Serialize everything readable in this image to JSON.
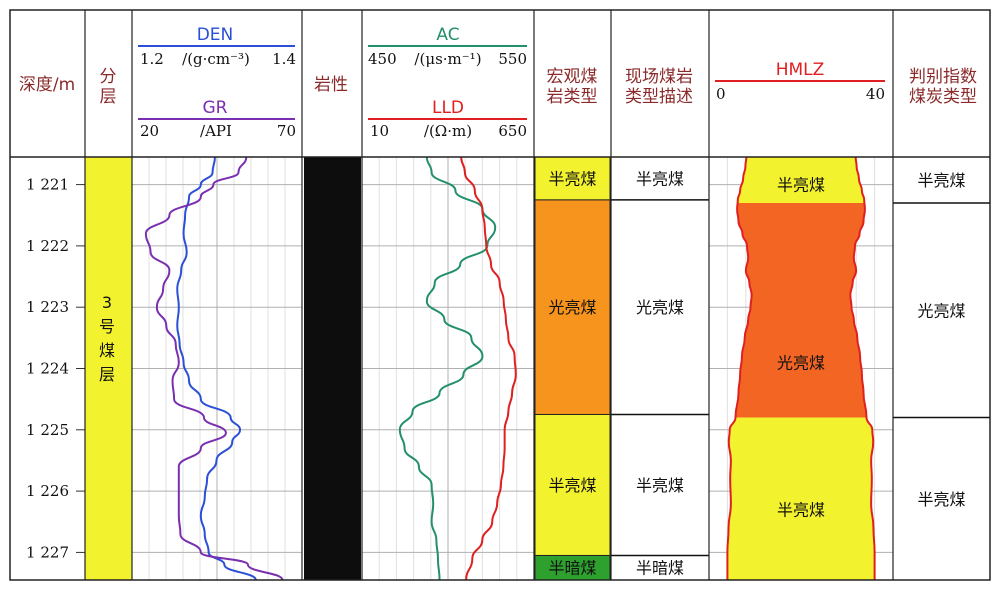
{
  "headers": {
    "depth": "深度/m",
    "layer": [
      "分",
      "层"
    ],
    "lithology": "岩性",
    "macro": [
      "宏观煤",
      "岩类型"
    ],
    "field": [
      "现场煤岩",
      "类型描述"
    ],
    "judge": [
      "判别指数",
      "煤炭类型"
    ]
  },
  "curves_header": {
    "den": {
      "name": "DEN",
      "min": "1.2",
      "unit": "/(g·cm⁻³)",
      "max": "1.4"
    },
    "gr": {
      "name": "GR",
      "min": "20",
      "unit": "/API",
      "max": "70"
    },
    "ac": {
      "name": "AC",
      "min": "450",
      "unit": "/(μs·m⁻¹)",
      "max": "550"
    },
    "lld": {
      "name": "LLD",
      "min": "10",
      "unit": "/(Ω·m)",
      "max": "650"
    },
    "hmlz": {
      "name": "HMLZ",
      "min": "0",
      "max": "40"
    }
  },
  "layer_label": [
    "3",
    "号",
    "煤",
    "层"
  ],
  "colors": {
    "den": "#2b4fd6",
    "gr": "#7a2fb0",
    "ac": "#23906a",
    "lld": "#e02020",
    "semi_bright": "#f2f22e",
    "bright": "#f7941d",
    "semi_dark": "#2ea02e",
    "hmlz_bright": "#f26522",
    "lithology": "#0d0d0d",
    "header_text": "#8b2a2a"
  },
  "chart_data": {
    "type": "line",
    "depth_ticks": [
      "1 221",
      "1 222",
      "1 223",
      "1 224",
      "1 225",
      "1 226",
      "1 227"
    ],
    "depth_range": [
      1220.55,
      1227.45
    ],
    "series": [
      {
        "name": "DEN",
        "unit": "g·cm⁻³",
        "range": [
          1.2,
          1.4
        ],
        "depth": [
          1220.55,
          1220.8,
          1221.0,
          1221.2,
          1221.5,
          1221.8,
          1222.1,
          1222.4,
          1222.7,
          1223.0,
          1223.3,
          1223.6,
          1223.9,
          1224.2,
          1224.5,
          1224.8,
          1225.0,
          1225.2,
          1225.5,
          1225.8,
          1226.1,
          1226.4,
          1226.7,
          1227.0,
          1227.2,
          1227.45
        ],
        "values": [
          1.298,
          1.295,
          1.28,
          1.265,
          1.26,
          1.258,
          1.262,
          1.255,
          1.25,
          1.252,
          1.25,
          1.253,
          1.258,
          1.265,
          1.28,
          1.318,
          1.33,
          1.32,
          1.3,
          1.288,
          1.285,
          1.28,
          1.285,
          1.29,
          1.31,
          1.35
        ]
      },
      {
        "name": "GR",
        "unit": "API",
        "range": [
          20,
          70
        ],
        "depth": [
          1220.55,
          1220.8,
          1221.0,
          1221.2,
          1221.5,
          1221.8,
          1222.1,
          1222.4,
          1222.7,
          1223.0,
          1223.3,
          1223.6,
          1223.9,
          1224.2,
          1224.5,
          1224.8,
          1225.05,
          1225.3,
          1225.6,
          1226.0,
          1226.4,
          1226.7,
          1227.0,
          1227.2,
          1227.45
        ],
        "values": [
          54.5,
          52,
          44,
          40,
          30,
          22.5,
          24,
          30,
          28,
          26,
          29,
          32,
          33,
          31,
          31.5,
          41,
          48,
          40,
          33,
          33,
          33,
          33.5,
          40,
          55,
          66
        ]
      },
      {
        "name": "AC",
        "unit": "μs·m⁻¹",
        "range": [
          450,
          550
        ],
        "depth": [
          1220.55,
          1220.8,
          1221.1,
          1221.4,
          1221.7,
          1222.0,
          1222.3,
          1222.6,
          1222.9,
          1223.2,
          1223.5,
          1223.8,
          1224.1,
          1224.4,
          1224.7,
          1225.0,
          1225.3,
          1225.6,
          1225.9,
          1226.2,
          1226.5,
          1226.8,
          1227.1,
          1227.45
        ],
        "values": [
          487,
          490,
          505,
          522,
          530,
          525,
          508,
          492,
          487,
          498,
          515,
          522,
          510,
          495,
          478,
          470,
          473,
          482,
          490,
          491,
          490,
          493,
          494,
          495
        ]
      },
      {
        "name": "LLD",
        "unit": "Ω·m",
        "range": [
          10,
          650
        ],
        "depth": [
          1220.55,
          1220.8,
          1221.1,
          1221.4,
          1221.7,
          1222.0,
          1222.3,
          1222.6,
          1222.9,
          1223.2,
          1223.5,
          1223.8,
          1224.1,
          1224.4,
          1224.7,
          1225.0,
          1225.3,
          1225.6,
          1225.9,
          1226.2,
          1226.5,
          1226.8,
          1227.1,
          1227.45
        ],
        "values": [
          385,
          400,
          440,
          470,
          480,
          486,
          505,
          540,
          556,
          565,
          575,
          600,
          605,
          590,
          575,
          560,
          560,
          555,
          545,
          530,
          510,
          470,
          430,
          405
        ]
      },
      {
        "name": "HMLZ",
        "range": [
          0,
          40
        ],
        "depth": [
          1220.55,
          1220.7,
          1220.9,
          1221.1,
          1221.25,
          1221.4,
          1221.6,
          1221.8,
          1222.0,
          1222.2,
          1222.4,
          1222.6,
          1222.8,
          1223.0,
          1223.2,
          1223.5,
          1223.8,
          1224.1,
          1224.4,
          1224.8,
          1225.0,
          1225.2,
          1225.5,
          1225.8,
          1226.2,
          1226.6,
          1227.0,
          1227.45
        ],
        "values": [
          8.2,
          7.8,
          6.8,
          5.5,
          4.5,
          4.2,
          4.8,
          6.5,
          8.5,
          9.0,
          8.0,
          9.5,
          10.5,
          10.0,
          9.0,
          7.5,
          6.3,
          5.5,
          4.8,
          3.5,
          1.0,
          0.6,
          1.5,
          1.2,
          1.5,
          0.5,
          0.0,
          0.0
        ],
        "fill_bands": [
          {
            "from": 1220.55,
            "to": 1221.3,
            "type": "半亮煤"
          },
          {
            "from": 1221.3,
            "to": 1224.8,
            "type": "光亮煤"
          },
          {
            "from": 1224.8,
            "to": 1227.45,
            "type": "半亮煤"
          }
        ]
      }
    ],
    "intervals": {
      "macro": [
        {
          "from": 1220.55,
          "to": 1221.25,
          "label": "半亮煤",
          "kind": "semi_bright"
        },
        {
          "from": 1221.25,
          "to": 1224.75,
          "label": "光亮煤",
          "kind": "bright"
        },
        {
          "from": 1224.75,
          "to": 1227.05,
          "label": "半亮煤",
          "kind": "semi_bright"
        },
        {
          "from": 1227.05,
          "to": 1227.45,
          "label": "半暗煤",
          "kind": "semi_dark"
        }
      ],
      "field": [
        {
          "from": 1220.55,
          "to": 1221.25,
          "label": "半亮煤"
        },
        {
          "from": 1221.25,
          "to": 1224.75,
          "label": "光亮煤"
        },
        {
          "from": 1224.75,
          "to": 1227.05,
          "label": "半亮煤"
        },
        {
          "from": 1227.05,
          "to": 1227.45,
          "label": "半暗煤"
        }
      ],
      "judge": [
        {
          "from": 1220.55,
          "to": 1221.3,
          "label": "半亮煤"
        },
        {
          "from": 1221.3,
          "to": 1224.8,
          "label": "光亮煤"
        },
        {
          "from": 1224.8,
          "to": 1227.45,
          "label": "半亮煤"
        }
      ],
      "hmlz_labels": [
        {
          "depth": 1221.0,
          "label": "半亮煤"
        },
        {
          "depth": 1223.9,
          "label": "光亮煤"
        },
        {
          "depth": 1226.3,
          "label": "半亮煤"
        }
      ]
    }
  }
}
